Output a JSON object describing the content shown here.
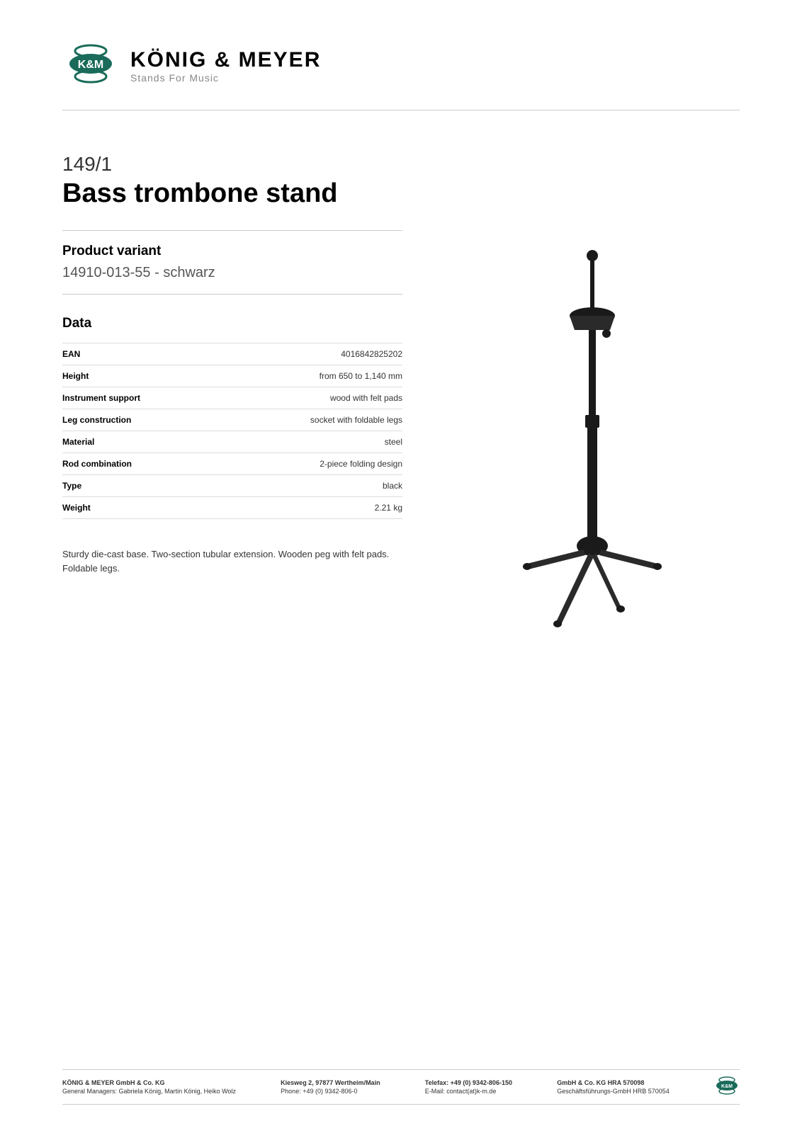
{
  "header": {
    "brand": "KÖNIG & MEYER",
    "tagline": "Stands For Music",
    "logo_colors": {
      "primary": "#1a6b5a",
      "text": "#000000",
      "tagline": "#888888"
    }
  },
  "product": {
    "code": "149/1",
    "code_suffix": " ",
    "title": "Bass trombone stand"
  },
  "variant": {
    "label": "Product variant",
    "value": "14910-013-55 - schwarz"
  },
  "data": {
    "label": "Data",
    "rows": [
      {
        "key": "EAN",
        "value": "4016842825202"
      },
      {
        "key": "Height",
        "value": "from 650 to 1,140 mm"
      },
      {
        "key": "Instrument support",
        "value": "wood with felt pads"
      },
      {
        "key": "Leg construction",
        "value": "socket with foldable legs"
      },
      {
        "key": "Material",
        "value": "steel"
      },
      {
        "key": "Rod combination",
        "value": "2-piece folding design"
      },
      {
        "key": "Type",
        "value": "black"
      },
      {
        "key": "Weight",
        "value": "2.21 kg"
      }
    ]
  },
  "description": "Sturdy die-cast base. Two-section tubular extension. Wooden peg with felt pads. Foldable legs.",
  "product_image": {
    "colors": {
      "stand": "#1a1a1a",
      "highlight": "#555555",
      "base": "#2a2a2a"
    }
  },
  "footer": {
    "col1": {
      "line1": "KÖNIG & MEYER GmbH & Co. KG",
      "line2": "General Managers: Gabriela König, Martin König, Heiko Wolz"
    },
    "col2": {
      "line1": "Kiesweg 2, 97877 Wertheim/Main",
      "line2": "Phone:   +49 (0) 9342-806-0"
    },
    "col3": {
      "line1": "Telefax: +49 (0) 9342-806-150",
      "line2": "E-Mail: contact(at)k-m.de"
    },
    "col4": {
      "line1": "GmbH & Co. KG HRA 570098",
      "line2": "Geschäftsführungs-GmbH HRB 570054"
    },
    "logo_color": "#1a6b5a"
  }
}
